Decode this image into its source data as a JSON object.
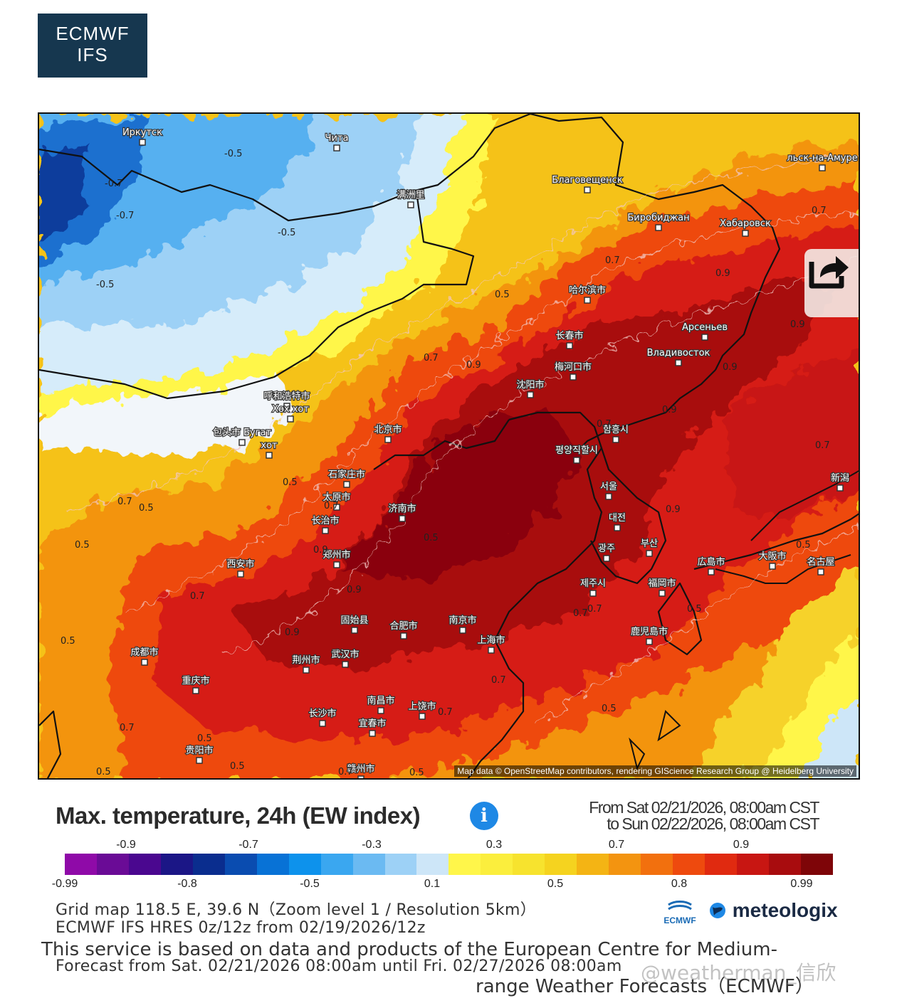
{
  "logo": {
    "line1": "ECMWF",
    "line2": "IFS"
  },
  "map": {
    "attribution": "Map data © OpenStreetMap contributors, rendering GIScience Research Group @ Heidelberg University",
    "cities": [
      {
        "name": "Иркутск"
      },
      {
        "name": "Чита"
      },
      {
        "name": "满洲里"
      },
      {
        "name": "Благовещенск"
      },
      {
        "name": "Биробиджан"
      },
      {
        "name": "Хабаровск"
      },
      {
        "name": "哈尔滨市"
      },
      {
        "name": "长春市"
      },
      {
        "name": "Арсеньев"
      },
      {
        "name": "Владивосток"
      },
      {
        "name": "沈阳市"
      },
      {
        "name": "梅河口市"
      },
      {
        "name": "呼和浩特市"
      },
      {
        "name": "Хөх хот"
      },
      {
        "name": "包头市 Бугат"
      },
      {
        "name": "хот"
      },
      {
        "name": "北京市"
      },
      {
        "name": "함흥시"
      },
      {
        "name": "평양직할시"
      },
      {
        "name": "石家庄市"
      },
      {
        "name": "太原市"
      },
      {
        "name": "济南市"
      },
      {
        "name": "서울"
      },
      {
        "name": "长治市"
      },
      {
        "name": "대전"
      },
      {
        "name": "광주"
      },
      {
        "name": "부산"
      },
      {
        "name": "郑州市"
      },
      {
        "name": "西安市"
      },
      {
        "name": "제주시"
      },
      {
        "name": "広島市"
      },
      {
        "name": "大阪市"
      },
      {
        "name": "名古屋"
      },
      {
        "name": "福岡市"
      },
      {
        "name": "固始县"
      },
      {
        "name": "合肥市"
      },
      {
        "name": "南京市"
      },
      {
        "name": "上海市"
      },
      {
        "name": "鹿児島市"
      },
      {
        "name": "成都市"
      },
      {
        "name": "荆州市"
      },
      {
        "name": "武汉市"
      },
      {
        "name": "重庆市"
      },
      {
        "name": "南昌市"
      },
      {
        "name": "上饶市"
      },
      {
        "name": "长沙市"
      },
      {
        "name": "宜春市"
      },
      {
        "name": "贵阳市"
      },
      {
        "name": "赣州市"
      },
      {
        "name": "新潟"
      },
      {
        "name": "льск-на-Амуре"
      }
    ],
    "isolines": [
      "-0.5",
      "-0.7",
      "-0.7",
      "-0.5",
      "-0.5",
      "0.5",
      "0.7",
      "0.9",
      "0.7",
      "0.9",
      "0.9",
      "0.7",
      "0.9",
      "0.9",
      "0.5",
      "0.7",
      "0.5",
      "0.7",
      "0.5",
      "0.9",
      "0.9",
      "0.7",
      "0.5",
      "0.7",
      "0.7",
      "0.5",
      "0.9",
      "0.7",
      "0.7",
      "0.5",
      "0.5",
      "0.7",
      "0.5",
      "0.5",
      "0.5",
      "0.7",
      "0.7",
      "0.5",
      "0.7",
      "0.5",
      "0.9",
      "0.9"
    ]
  },
  "legend": {
    "title": "Max. temperature, 24h (EW index)",
    "period_from": "From Sat 02/21/2026, 08:00am CST",
    "period_to": "to Sun 02/22/2026, 08:00am CST",
    "top_ticks": [
      "-0.9",
      "-0.7",
      "-0.3",
      "0.3",
      "0.7",
      "0.9"
    ],
    "bottom_ticks": [
      "-0.99",
      "-0.8",
      "-0.5",
      "0.1",
      "0.5",
      "0.8",
      "0.99"
    ],
    "colors": [
      "#8f0aa8",
      "#6a0b96",
      "#4a078f",
      "#1b1686",
      "#0a2d8e",
      "#0a4cb0",
      "#0872d6",
      "#0d92ec",
      "#3aa7f0",
      "#6bbaf2",
      "#9dd1f6",
      "#cde6f8",
      "#fff64a",
      "#fbee3d",
      "#f7e32e",
      "#f5d31f",
      "#f4b414",
      "#f39410",
      "#f2700e",
      "#ee4a0e",
      "#e02a10",
      "#c81612",
      "#a80c0e",
      "#7e0508"
    ]
  },
  "footer": {
    "grid_line": "Grid map 118.5 E, 39.6 N（Zoom level 1 / Resolution 5km）",
    "model_line": "ECMWF IFS HRES 0z/12z from 02/19/2026/12z",
    "service_line1": "This service is based on data and products of the European Centre for Medium-",
    "forecast_line": "Forecast from Sat. 02/21/2026 08:00am until Fri. 02/27/2026 08:00am",
    "service_line2": "range Weather Forecasts（ECMWF）",
    "ecmwf_logo": "ECMWF",
    "meteologix": "meteologix",
    "watermark": "@weatherman_信欣"
  }
}
